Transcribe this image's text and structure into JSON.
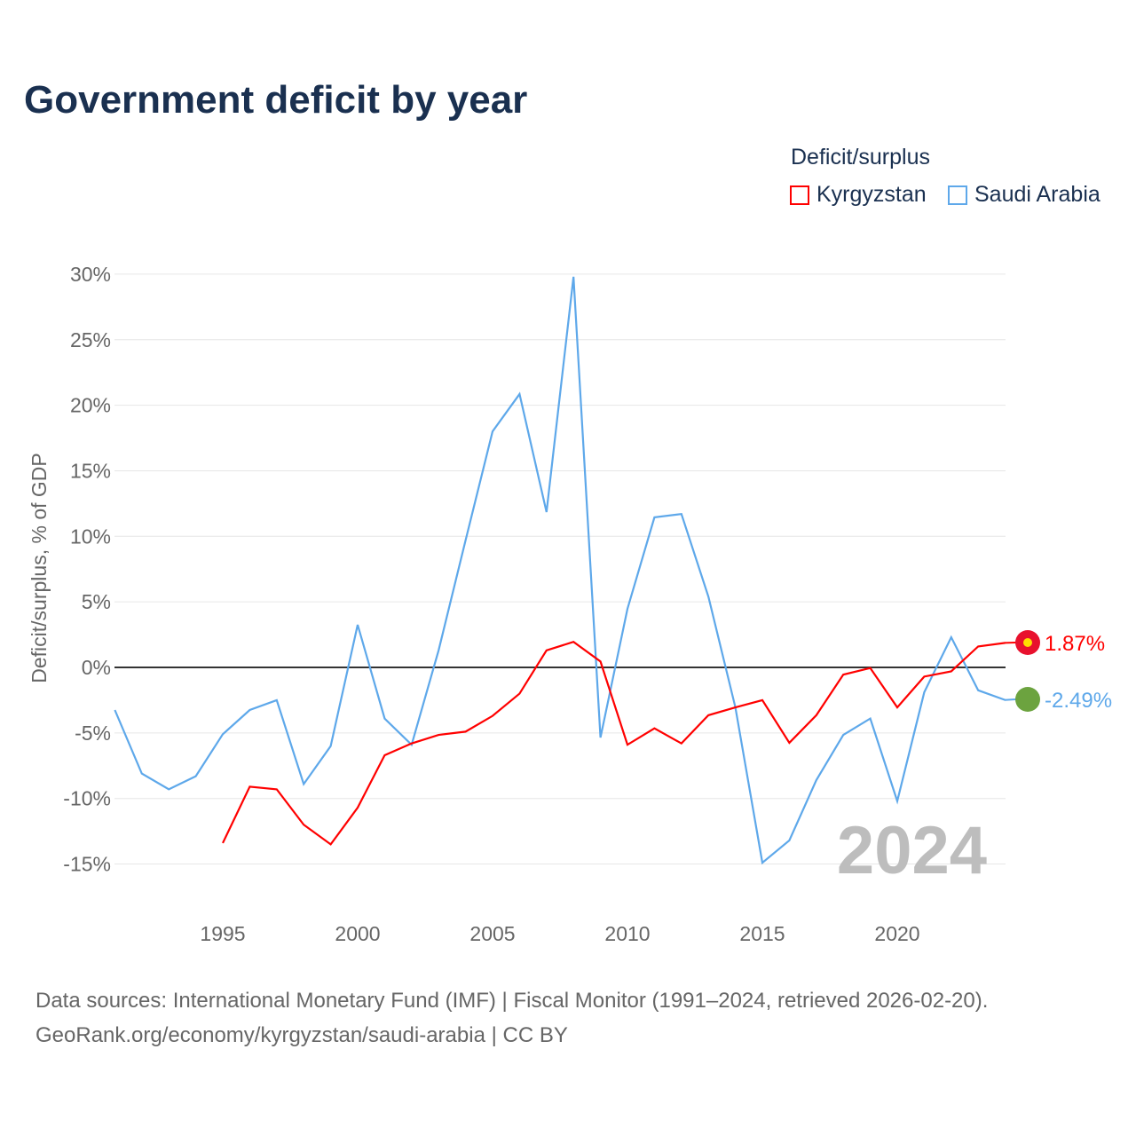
{
  "title": "Government deficit by year",
  "legend": {
    "title": "Deficit/surplus",
    "items": [
      "Kyrgyzstan",
      "Saudi Arabia"
    ]
  },
  "source": {
    "line1": "Data sources: International Monetary Fund (IMF) | Fiscal Monitor (1991–2024, retrieved 2026-02-20).",
    "line2": "GeoRank.org/economy/kyrgyzstan/saudi-arabia | CC BY"
  },
  "chart_data": {
    "type": "line",
    "title": "Government deficit by year",
    "xlabel": "",
    "ylabel": "Deficit/surplus, % of GDP",
    "xlim": [
      1991,
      2024
    ],
    "ylim": [
      -15,
      30
    ],
    "xticks": [
      1995,
      2000,
      2005,
      2010,
      2015,
      2020
    ],
    "yticks": [
      -15,
      -10,
      -5,
      0,
      5,
      10,
      15,
      20,
      25,
      30
    ],
    "watermark": "2024",
    "series": [
      {
        "name": "Kyrgyzstan",
        "color": "#ff0000",
        "end_label": "1.87%",
        "start": 1995,
        "values": [
          -13.4,
          -9.1,
          -9.3,
          -12.0,
          -13.5,
          -10.7,
          -6.7,
          -5.8,
          -5.15,
          -4.9,
          -3.7,
          -2.0,
          1.3,
          1.95,
          0.45,
          -5.9,
          -4.65,
          -5.8,
          -3.65,
          -3.05,
          -2.5,
          -5.75,
          -3.65,
          -0.55,
          -0.05,
          -3.05,
          -0.7,
          -0.3,
          1.6,
          1.87
        ]
      },
      {
        "name": "Saudi Arabia",
        "color": "#5ea8ea",
        "end_label": "-2.49%",
        "start": 1991,
        "values": [
          -3.25,
          -8.1,
          -9.3,
          -8.3,
          -5.1,
          -3.25,
          -2.5,
          -8.9,
          -6.0,
          3.25,
          -3.9,
          -5.9,
          1.3,
          9.7,
          18.0,
          20.85,
          11.85,
          29.8,
          -5.35,
          4.47,
          11.45,
          11.7,
          5.4,
          -3.05,
          -14.9,
          -13.2,
          -8.6,
          -5.15,
          -3.9,
          -10.2,
          -1.9,
          2.3,
          -1.75,
          -2.49
        ]
      }
    ]
  }
}
